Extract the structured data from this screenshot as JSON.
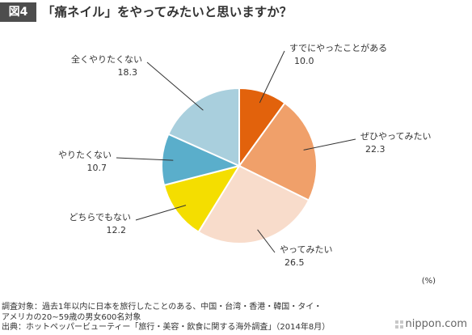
{
  "header": {
    "figure_label": "図4",
    "title": "「痛ネイル」をやってみたいと思いますか？"
  },
  "chart_data": {
    "type": "pie",
    "title": "「痛ネイル」をやってみたいと思いますか？",
    "unit": "(%)",
    "slices": [
      {
        "label": "すでにやったことがある",
        "value": 10.0,
        "display": "10.0",
        "color": "#e2620c"
      },
      {
        "label": "ぜひやってみたい",
        "value": 22.3,
        "display": "22.3",
        "color": "#f0a06a"
      },
      {
        "label": "やってみたい",
        "value": 26.5,
        "display": "26.5",
        "color": "#f8dccb"
      },
      {
        "label": "どちらでもない",
        "value": 12.2,
        "display": "12.2",
        "color": "#f4de00"
      },
      {
        "label": "やりたくない",
        "value": 10.7,
        "display": "10.7",
        "color": "#5aaecb"
      },
      {
        "label": "全くやりたくない",
        "value": 18.3,
        "display": "18.3",
        "color": "#a9cfdd"
      }
    ]
  },
  "notes": {
    "line1": "調査対象：過去1年以内に日本を旅行したことのある、中国・台湾・香港・韓国・タイ・",
    "line2": "アメリカの20~59歳の男女600名対象",
    "line3": "出典：ホットペッパービューティー「旅行・美容・飲食に関する海外調査」（2014年8月）"
  },
  "brand": {
    "name": "nippon.com"
  }
}
